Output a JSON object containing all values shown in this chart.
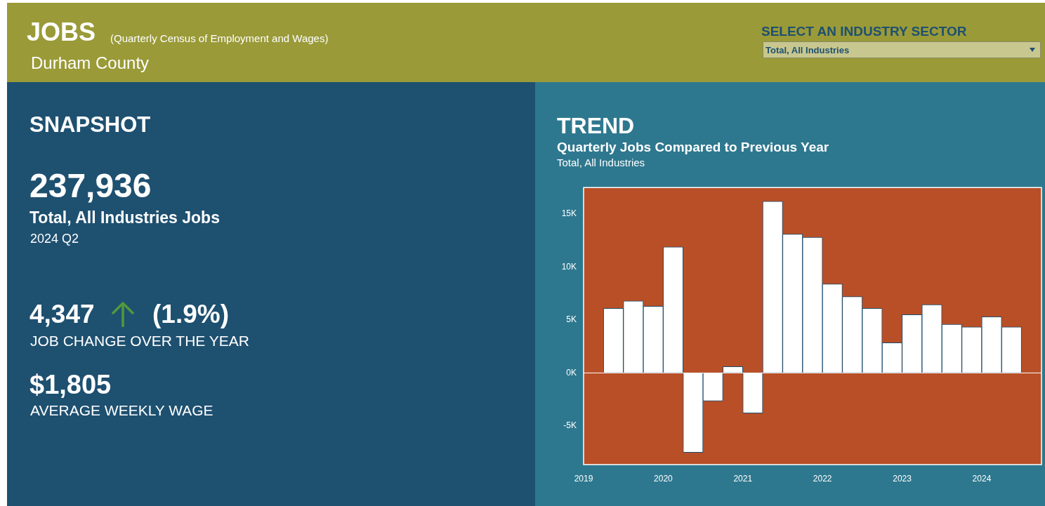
{
  "chart_data": [
    {
      "type": "other",
      "title": "JOBS",
      "subtitle": "(Quarterly Census of Employment and Wages)",
      "annotations": [
        "Durham County",
        "SELECT AN INDUSTRY SECTOR",
        "Total, All Industries"
      ]
    },
    {
      "type": "other",
      "title": "SNAPSHOT",
      "annotations": [
        "237,936",
        "Total, All Industries Jobs",
        "2024 Q2",
        "4,347",
        "(1.9%)",
        "JOB CHANGE OVER THE YEAR",
        "$1,805",
        "AVERAGE WEEKLY WAGE"
      ]
    },
    {
      "type": "bar",
      "title": "TREND",
      "subtitle": "Quarterly Jobs Compared to Previous Year",
      "annotations": [
        "Total, All Industries"
      ],
      "x": [
        "2019-05-16",
        "2019-08-16",
        "2019-11-16",
        "2020-02-16",
        "2020-05-16",
        "2020-08-16",
        "2020-11-16",
        "2021-02-16",
        "2021-05-16",
        "2021-08-16",
        "2021-11-16",
        "2022-02-16",
        "2022-05-16",
        "2022-08-16",
        "2022-11-16",
        "2023-02-16",
        "2023-05-16",
        "2023-08-16",
        "2023-11-16",
        "2024-02-16",
        "2024-05-16"
      ],
      "values": [
        6100,
        6800,
        6300,
        11900,
        -7500,
        -2650,
        600,
        -3800,
        16200,
        13100,
        12800,
        8400,
        7200,
        6100,
        2850,
        5500,
        6450,
        4600,
        4350,
        5300,
        4350
      ],
      "color": "#ffffff",
      "xlim": [
        "2019-01",
        "2024-10"
      ],
      "xticks": [
        "2019",
        "2020",
        "2021",
        "2022",
        "2023",
        "2024"
      ],
      "ylim": [
        -8650,
        17500
      ],
      "yticks": [
        {
          "value": -5000,
          "label": "-5K"
        },
        {
          "value": 0,
          "label": "0K"
        },
        {
          "value": 5000,
          "label": "5K"
        },
        {
          "value": 10000,
          "label": "10K"
        },
        {
          "value": 15000,
          "label": "15K"
        }
      ]
    }
  ]
}
